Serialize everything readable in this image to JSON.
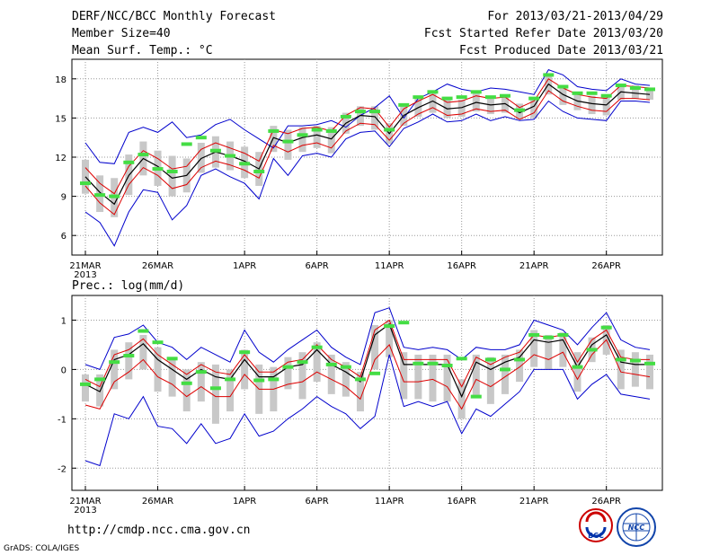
{
  "header": {
    "title": "DERF/NCC/BCC Monthly Forecast",
    "member_size": "Member Size=40",
    "variable": "Mean Surf. Temp.: °C",
    "period": "For 2013/03/21-2013/04/29",
    "fcst_started": "Fcst Started Refer Date 2013/03/20",
    "fcst_produced": "Fcst Produced Date 2013/03/21"
  },
  "footer": {
    "url": "http://cmdp.ncc.cma.gov.cn",
    "grads": "GrADS: COLA/IGES",
    "logo_bcc": "BCC",
    "logo_ncc": "NCC"
  },
  "colors": {
    "ensemble_range": "#0000cc",
    "spread": "#dd0000",
    "mean": "#000000",
    "box": "#c8c8c8",
    "observation": "#44dd44",
    "grid": "#999999"
  },
  "chart_data": [
    {
      "type": "box-line",
      "title": "Mean Surf. Temp.: °C",
      "xlabel": "",
      "ylabel": "",
      "x_tick_labels": [
        "21MAR",
        "26MAR",
        "1APR",
        "6APR",
        "11APR",
        "16APR",
        "21APR",
        "26APR"
      ],
      "year_label": "2013",
      "x_tick_day_index": [
        0,
        5,
        11,
        16,
        21,
        26,
        31,
        36
      ],
      "y_ticks": [
        6,
        9,
        12,
        15,
        18
      ],
      "y_tick_labels": [
        "6",
        "9",
        "12",
        "15",
        "18"
      ],
      "ylim": [
        4.5,
        19.5
      ],
      "n_days": 40,
      "series": [
        {
          "name": "ensemble_max",
          "values": [
            13.1,
            11.6,
            11.5,
            13.9,
            14.3,
            13.9,
            14.7,
            13.5,
            13.7,
            14.5,
            14.9,
            14.1,
            13.4,
            12.7,
            14.4,
            14.4,
            14.5,
            14.8,
            14.3,
            15.2,
            15.8,
            16.7,
            15.0,
            16.5,
            17.0,
            17.6,
            17.2,
            17.0,
            17.3,
            17.2,
            17.0,
            16.8,
            18.7,
            18.3,
            17.4,
            17.2,
            17.1,
            18.0,
            17.6,
            17.5
          ]
        },
        {
          "name": "spread_upper",
          "values": [
            11.2,
            10.0,
            9.2,
            11.3,
            12.5,
            11.9,
            11.1,
            11.3,
            12.6,
            13.1,
            12.7,
            12.3,
            11.7,
            14.1,
            13.8,
            14.2,
            14.3,
            14.0,
            15.2,
            15.8,
            15.7,
            14.3,
            15.7,
            16.3,
            16.8,
            16.2,
            16.3,
            16.7,
            16.5,
            16.6,
            15.8,
            16.3,
            18.0,
            17.3,
            16.8,
            16.6,
            16.5,
            17.5,
            17.4,
            17.3
          ]
        },
        {
          "name": "ensemble_mean",
          "values": [
            10.5,
            9.3,
            8.4,
            10.6,
            11.9,
            11.3,
            10.4,
            10.6,
            11.9,
            12.4,
            12.1,
            11.7,
            11.1,
            13.5,
            13.1,
            13.5,
            13.7,
            13.4,
            14.6,
            15.2,
            15.1,
            13.8,
            15.2,
            15.8,
            16.3,
            15.7,
            15.8,
            16.2,
            16.0,
            16.1,
            15.4,
            15.9,
            17.6,
            16.8,
            16.3,
            16.1,
            16.0,
            17.0,
            16.9,
            16.8
          ]
        },
        {
          "name": "spread_lower",
          "values": [
            9.8,
            8.5,
            7.6,
            9.9,
            11.2,
            10.6,
            9.6,
            9.9,
            11.2,
            11.7,
            11.4,
            11.0,
            10.4,
            12.9,
            12.4,
            12.9,
            13.1,
            12.7,
            14.0,
            14.6,
            14.5,
            13.3,
            14.6,
            15.3,
            15.8,
            15.2,
            15.3,
            15.7,
            15.5,
            15.6,
            14.9,
            15.4,
            17.1,
            16.3,
            15.9,
            15.6,
            15.5,
            16.5,
            16.5,
            16.4
          ]
        },
        {
          "name": "ensemble_min",
          "values": [
            7.8,
            7.0,
            5.2,
            7.8,
            9.5,
            9.3,
            7.2,
            8.3,
            10.6,
            11.1,
            10.5,
            10.0,
            8.8,
            11.9,
            10.6,
            12.1,
            12.3,
            12.0,
            13.4,
            13.9,
            14.0,
            12.8,
            14.2,
            14.7,
            15.3,
            14.7,
            14.8,
            15.3,
            14.8,
            15.1,
            14.8,
            14.9,
            16.3,
            15.5,
            15.0,
            14.9,
            14.8,
            16.3,
            16.3,
            16.2
          ]
        },
        {
          "name": "box_top",
          "values": [
            11.8,
            10.6,
            10.4,
            12.2,
            13.2,
            12.5,
            12.1,
            11.9,
            13.1,
            13.6,
            13.2,
            12.8,
            12.4,
            14.4,
            14.1,
            14.3,
            14.4,
            14.3,
            15.4,
            15.9,
            15.9,
            14.6,
            15.9,
            16.6,
            17.0,
            16.5,
            16.4,
            16.9,
            16.7,
            16.6,
            16.1,
            16.4,
            18.2,
            17.4,
            17.0,
            16.7,
            16.6,
            17.6,
            17.5,
            17.3
          ]
        },
        {
          "name": "box_bottom",
          "values": [
            9.2,
            7.8,
            7.4,
            9.1,
            10.6,
            9.8,
            9.0,
            9.3,
            10.8,
            11.2,
            11.0,
            10.4,
            9.8,
            12.4,
            11.8,
            12.4,
            12.7,
            12.3,
            13.8,
            14.4,
            14.1,
            13.0,
            14.4,
            15.1,
            15.4,
            15.0,
            15.1,
            15.5,
            15.3,
            15.4,
            14.9,
            15.0,
            16.8,
            16.0,
            15.6,
            15.3,
            15.2,
            16.4,
            16.5,
            16.4
          ]
        },
        {
          "name": "observation",
          "values": [
            10.0,
            9.1,
            9.0,
            11.6,
            12.2,
            11.1,
            10.9,
            13.0,
            13.5,
            12.5,
            12.1,
            11.5,
            10.9,
            14.0,
            13.2,
            13.7,
            14.1,
            14.0,
            15.1,
            15.5,
            15.5,
            14.1,
            16.0,
            16.6,
            17.0,
            16.5,
            16.6,
            17.0,
            16.6,
            16.7,
            15.6,
            16.5,
            18.3,
            17.4,
            16.9,
            16.9,
            16.7,
            17.5,
            17.3,
            17.2
          ]
        }
      ]
    },
    {
      "type": "box-line",
      "title": "Prec.: log(mm/d)",
      "xlabel": "",
      "ylabel": "",
      "x_tick_labels": [
        "21MAR",
        "26MAR",
        "1APR",
        "6APR",
        "11APR",
        "16APR",
        "21APR",
        "26APR"
      ],
      "year_label": "2013",
      "x_tick_day_index": [
        0,
        5,
        11,
        16,
        21,
        26,
        31,
        36
      ],
      "y_ticks": [
        -2,
        -1,
        0,
        1
      ],
      "y_tick_labels": [
        "-2",
        "-1",
        "0",
        "1"
      ],
      "ylim": [
        -2.45,
        1.5
      ],
      "n_days": 40,
      "series": [
        {
          "name": "ensemble_max",
          "values": [
            0.1,
            0.0,
            0.65,
            0.72,
            0.9,
            0.55,
            0.45,
            0.2,
            0.45,
            0.3,
            0.15,
            0.8,
            0.35,
            0.15,
            0.4,
            0.6,
            0.8,
            0.45,
            0.25,
            0.1,
            1.15,
            1.25,
            0.45,
            0.4,
            0.45,
            0.4,
            0.2,
            0.45,
            0.4,
            0.4,
            0.5,
            1.0,
            0.9,
            0.8,
            0.5,
            0.85,
            1.15,
            0.6,
            0.45,
            0.4
          ]
        },
        {
          "name": "spread_upper",
          "values": [
            -0.2,
            -0.35,
            0.3,
            0.4,
            0.62,
            0.3,
            0.1,
            -0.1,
            0.1,
            -0.05,
            -0.1,
            0.3,
            -0.05,
            -0.05,
            0.15,
            0.2,
            0.5,
            0.2,
            0.05,
            -0.15,
            0.8,
            1.0,
            0.2,
            0.2,
            0.2,
            0.2,
            -0.35,
            0.25,
            0.1,
            0.25,
            0.35,
            0.7,
            0.65,
            0.7,
            0.15,
            0.6,
            0.8,
            0.25,
            0.2,
            0.2
          ]
        },
        {
          "name": "ensemble_mean",
          "values": [
            -0.3,
            -0.45,
            0.2,
            0.3,
            0.52,
            0.2,
            0.0,
            -0.2,
            0.0,
            -0.15,
            -0.2,
            0.2,
            -0.15,
            -0.15,
            0.05,
            0.1,
            0.4,
            0.1,
            -0.05,
            -0.25,
            0.7,
            0.92,
            0.1,
            0.1,
            0.1,
            0.1,
            -0.55,
            0.15,
            0.0,
            0.15,
            0.25,
            0.6,
            0.55,
            0.6,
            0.05,
            0.5,
            0.7,
            0.15,
            0.1,
            0.1
          ]
        },
        {
          "name": "spread_lower",
          "values": [
            -0.72,
            -0.8,
            -0.25,
            -0.05,
            0.2,
            -0.15,
            -0.3,
            -0.55,
            -0.35,
            -0.55,
            -0.55,
            -0.1,
            -0.4,
            -0.4,
            -0.3,
            -0.25,
            -0.05,
            -0.2,
            -0.35,
            -0.6,
            0.2,
            0.5,
            -0.25,
            -0.25,
            -0.2,
            -0.35,
            -0.8,
            -0.2,
            -0.35,
            -0.15,
            0.05,
            0.3,
            0.2,
            0.35,
            -0.2,
            0.3,
            0.6,
            -0.05,
            -0.1,
            -0.15
          ]
        },
        {
          "name": "ensemble_min",
          "values": [
            -1.85,
            -1.95,
            -0.9,
            -1.0,
            -0.55,
            -1.15,
            -1.2,
            -1.5,
            -1.1,
            -1.5,
            -1.4,
            -0.9,
            -1.35,
            -1.25,
            -1.0,
            -0.8,
            -0.55,
            -0.75,
            -0.9,
            -1.2,
            -0.95,
            0.3,
            -0.75,
            -0.65,
            -0.75,
            -0.65,
            -1.3,
            -0.8,
            -0.95,
            -0.7,
            -0.45,
            0.0,
            0.0,
            0.0,
            -0.6,
            -0.3,
            -0.1,
            -0.5,
            -0.55,
            -0.6
          ]
        },
        {
          "name": "box_top",
          "values": [
            -0.1,
            -0.1,
            0.4,
            0.55,
            0.7,
            0.45,
            0.25,
            0.0,
            0.15,
            0.1,
            0.0,
            0.4,
            0.1,
            0.05,
            0.25,
            0.35,
            0.55,
            0.3,
            0.15,
            -0.05,
            0.9,
            1.0,
            0.35,
            0.3,
            0.3,
            0.3,
            -0.2,
            0.3,
            0.25,
            0.3,
            0.4,
            0.8,
            0.7,
            0.75,
            0.35,
            0.65,
            0.9,
            0.4,
            0.35,
            0.3
          ]
        },
        {
          "name": "box_bottom",
          "values": [
            -0.65,
            -0.75,
            -0.4,
            -0.2,
            0.0,
            -0.45,
            -0.55,
            -0.85,
            -0.65,
            -1.1,
            -0.85,
            -0.4,
            -0.9,
            -0.85,
            -0.4,
            -0.6,
            -0.25,
            -0.5,
            -0.55,
            -0.85,
            0.0,
            0.25,
            -0.6,
            -0.6,
            -0.65,
            -0.65,
            -1.0,
            -0.55,
            -0.7,
            -0.5,
            -0.25,
            0.05,
            0.0,
            0.05,
            -0.45,
            0.15,
            0.3,
            -0.4,
            -0.35,
            -0.4
          ]
        },
        {
          "name": "observation",
          "values": [
            -0.3,
            -0.2,
            0.15,
            0.28,
            0.78,
            0.55,
            0.22,
            -0.28,
            -0.05,
            -0.38,
            -0.2,
            0.35,
            -0.22,
            -0.2,
            0.05,
            0.15,
            0.45,
            0.1,
            0.05,
            -0.2,
            -0.08,
            0.88,
            0.95,
            0.12,
            0.12,
            0.08,
            0.22,
            -0.55,
            0.2,
            0.0,
            0.2,
            0.7,
            0.65,
            0.7,
            0.05,
            0.4,
            0.85,
            0.2,
            0.18,
            0.12
          ]
        }
      ]
    }
  ]
}
